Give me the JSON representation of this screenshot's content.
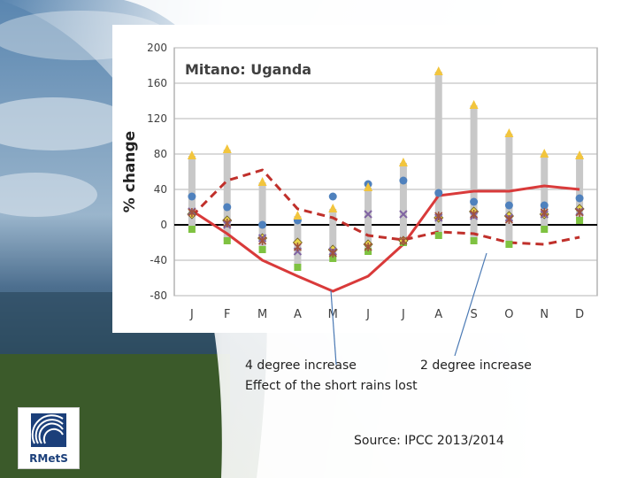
{
  "chart_data": {
    "type": "line",
    "title": "Mitano: Uganda",
    "ylabel": "% change",
    "xlabel": "",
    "categories": [
      "J",
      "F",
      "M",
      "A",
      "M",
      "J",
      "J",
      "A",
      "S",
      "O",
      "N",
      "D"
    ],
    "ylim": [
      -80,
      200
    ],
    "yticks": [
      -80,
      -40,
      0,
      40,
      80,
      120,
      160,
      200
    ],
    "grid": true,
    "ranges": {
      "max": [
        78,
        85,
        48,
        10,
        18,
        42,
        70,
        173,
        135,
        103,
        80,
        78
      ],
      "min": [
        -5,
        -18,
        -28,
        -48,
        -38,
        -30,
        -20,
        -12,
        -18,
        -22,
        -5,
        5
      ]
    },
    "series": [
      {
        "marker": "circle",
        "color": "#4f81bd",
        "values": [
          32,
          20,
          0,
          5,
          32,
          46,
          50,
          36,
          26,
          22,
          22,
          30
        ]
      },
      {
        "marker": "triangle",
        "color": "#f2c53d",
        "values": [
          78,
          85,
          48,
          10,
          18,
          42,
          70,
          173,
          135,
          103,
          80,
          78
        ]
      },
      {
        "marker": "square",
        "color": "#7fc241",
        "values": [
          -5,
          -18,
          -28,
          -48,
          -38,
          -30,
          -20,
          -12,
          -18,
          -22,
          -5,
          5
        ]
      },
      {
        "marker": "diamond",
        "color": "#e8d44d",
        "values": [
          12,
          5,
          -15,
          -20,
          -28,
          -22,
          -18,
          8,
          15,
          10,
          12,
          18
        ]
      },
      {
        "marker": "x",
        "color": "#8064a2",
        "values": [
          15,
          0,
          -15,
          -30,
          -30,
          12,
          12,
          8,
          10,
          8,
          12,
          15
        ]
      },
      {
        "marker": "star",
        "color": "#a0523d",
        "values": [
          14,
          2,
          -18,
          -25,
          -32,
          -25,
          -18,
          10,
          12,
          6,
          14,
          14
        ]
      },
      {
        "line": "solid",
        "color": "#d93a3a",
        "values": [
          16,
          -10,
          -40,
          -58,
          -75,
          -58,
          -22,
          33,
          38,
          38,
          44,
          40
        ]
      },
      {
        "line": "dashed",
        "color": "#c0302b",
        "values": [
          10,
          50,
          62,
          18,
          8,
          -12,
          -17,
          -8,
          -10,
          -20,
          -22,
          -14
        ]
      }
    ]
  },
  "annotations": {
    "four_degree": "4 degree increase",
    "two_degree": "2 degree increase",
    "short_rains": "Effect of the short rains lost",
    "source": "Source: IPCC 2013/2014"
  },
  "logo": {
    "text": "RMetS"
  }
}
